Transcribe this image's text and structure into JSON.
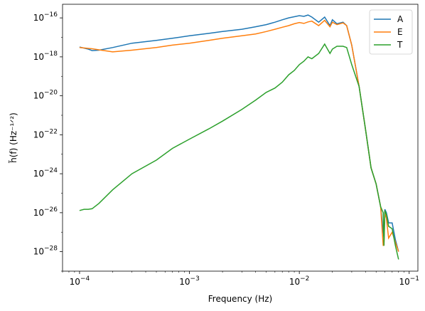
{
  "chart_data": {
    "type": "line",
    "title": "",
    "xlabel": "Frequency (Hz)",
    "ylabel": "h̃(f) (Hz⁻¹ᐟ²)",
    "xscale": "log",
    "yscale": "log",
    "xlim": [
      7e-05,
      0.12
    ],
    "ylim": [
      1e-29,
      5e-16
    ],
    "x_ticks": [
      {
        "value": 0.0001,
        "mant": "10",
        "exp": "−4"
      },
      {
        "value": 0.001,
        "mant": "10",
        "exp": "−3"
      },
      {
        "value": 0.01,
        "mant": "10",
        "exp": "−2"
      },
      {
        "value": 0.1,
        "mant": "10",
        "exp": "−1"
      }
    ],
    "y_ticks": [
      {
        "value": 1e-16,
        "mant": "10",
        "exp": "−16"
      },
      {
        "value": 1e-18,
        "mant": "10",
        "exp": "−18"
      },
      {
        "value": 1e-20,
        "mant": "10",
        "exp": "−20"
      },
      {
        "value": 1e-22,
        "mant": "10",
        "exp": "−22"
      },
      {
        "value": 1e-24,
        "mant": "10",
        "exp": "−24"
      },
      {
        "value": 1e-26,
        "mant": "10",
        "exp": "−26"
      },
      {
        "value": 1e-28,
        "mant": "10",
        "exp": "−28"
      }
    ],
    "grid": false,
    "legend_position": "top-right",
    "series": [
      {
        "name": "A",
        "color": "#1f77b4",
        "x": [
          0.0001,
          0.00012,
          0.00013,
          0.00015,
          0.0002,
          0.0003,
          0.0005,
          0.0007,
          0.001,
          0.0015,
          0.002,
          0.003,
          0.004,
          0.005,
          0.006,
          0.007,
          0.008,
          0.009,
          0.01,
          0.011,
          0.012,
          0.013,
          0.015,
          0.017,
          0.019,
          0.02,
          0.022,
          0.025,
          0.027,
          0.03,
          0.035,
          0.04,
          0.045,
          0.05,
          0.055,
          0.058,
          0.059,
          0.06,
          0.062,
          0.065,
          0.07,
          0.075,
          0.08
        ],
        "y": [
          3.2e-18,
          2.5e-18,
          2.1e-18,
          2.2e-18,
          3e-18,
          5e-18,
          7e-18,
          9e-18,
          1.2e-17,
          1.6e-17,
          2e-17,
          2.6e-17,
          3.5e-17,
          4.5e-17,
          6e-17,
          8e-17,
          1e-16,
          1.15e-16,
          1.3e-16,
          1.2e-16,
          1.4e-16,
          1.1e-16,
          6e-17,
          1.1e-16,
          4e-17,
          8e-17,
          5e-17,
          6e-17,
          4e-17,
          4e-18,
          3e-20,
          2e-22,
          2e-24,
          3e-25,
          2e-26,
          1e-27,
          5e-28,
          1.5e-26,
          1e-26,
          3e-27,
          3e-27,
          4e-28,
          1e-28
        ]
      },
      {
        "name": "E",
        "color": "#ff7f0e",
        "x": [
          0.0001,
          0.00013,
          0.00015,
          0.0002,
          0.0003,
          0.0005,
          0.0007,
          0.001,
          0.0015,
          0.002,
          0.003,
          0.004,
          0.005,
          0.006,
          0.007,
          0.008,
          0.009,
          0.01,
          0.011,
          0.012,
          0.013,
          0.015,
          0.017,
          0.019,
          0.02,
          0.022,
          0.025,
          0.027,
          0.03,
          0.035,
          0.04,
          0.045,
          0.05,
          0.055,
          0.058,
          0.059,
          0.06,
          0.062,
          0.065,
          0.07,
          0.075,
          0.08
        ],
        "y": [
          3e-18,
          2.6e-18,
          2.3e-18,
          1.8e-18,
          2.2e-18,
          3e-18,
          4e-18,
          5e-18,
          7e-18,
          9e-18,
          1.2e-17,
          1.5e-17,
          2e-17,
          2.6e-17,
          3.3e-17,
          4e-17,
          5e-17,
          5.8e-17,
          5.2e-17,
          6.2e-17,
          6.8e-17,
          4e-17,
          7.5e-17,
          3.5e-17,
          6e-17,
          4.5e-17,
          5.5e-17,
          4e-17,
          4e-18,
          3e-20,
          2e-22,
          2e-24,
          3e-25,
          2e-26,
          2e-28,
          3e-28,
          1e-26,
          5e-27,
          5e-28,
          1e-27,
          3e-28,
          1e-28
        ]
      },
      {
        "name": "T",
        "color": "#2ca02c",
        "x": [
          0.0001,
          0.00011,
          0.00012,
          0.00013,
          0.00015,
          0.0002,
          0.0003,
          0.0005,
          0.0007,
          0.001,
          0.0015,
          0.002,
          0.003,
          0.004,
          0.005,
          0.006,
          0.007,
          0.008,
          0.009,
          0.01,
          0.011,
          0.012,
          0.013,
          0.015,
          0.017,
          0.019,
          0.02,
          0.022,
          0.025,
          0.027,
          0.03,
          0.035,
          0.04,
          0.045,
          0.05,
          0.055,
          0.058,
          0.059,
          0.06,
          0.062,
          0.065,
          0.07,
          0.075,
          0.08
        ],
        "y": [
          1.3e-26,
          1.5e-26,
          1.5e-26,
          1.6e-26,
          3e-26,
          1.5e-25,
          1e-24,
          5e-24,
          2e-23,
          6e-23,
          2e-22,
          5e-22,
          2e-21,
          6e-21,
          1.5e-20,
          2.5e-20,
          5e-20,
          1.2e-19,
          2e-19,
          4e-19,
          6e-19,
          1e-18,
          8e-19,
          1.5e-18,
          4.5e-18,
          1.5e-18,
          2.5e-18,
          3.5e-18,
          3.5e-18,
          3e-18,
          4e-19,
          3e-20,
          2e-22,
          2e-24,
          3e-25,
          2e-26,
          1e-26,
          2e-28,
          1.3e-26,
          8e-27,
          2e-27,
          1.5e-27,
          2e-28,
          4e-29
        ]
      }
    ]
  }
}
